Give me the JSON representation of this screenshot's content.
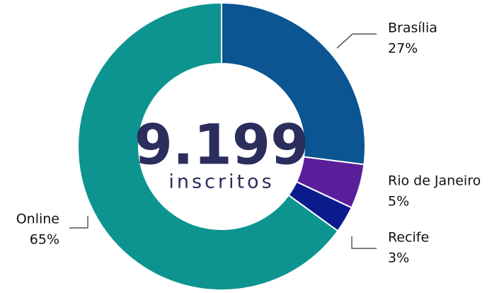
{
  "chart_data": {
    "type": "donut",
    "categories": [
      "Brasília",
      "Rio de Janeiro",
      "Recife",
      "Online"
    ],
    "values": [
      27,
      5,
      3,
      65
    ],
    "value_labels": [
      "27%",
      "5%",
      "3%",
      "65%"
    ],
    "colors": [
      "#0b5592",
      "#5a1e9a",
      "#0b1b8c",
      "#0e9490"
    ],
    "center_label": "9.199",
    "center_sublabel": "inscritos"
  }
}
